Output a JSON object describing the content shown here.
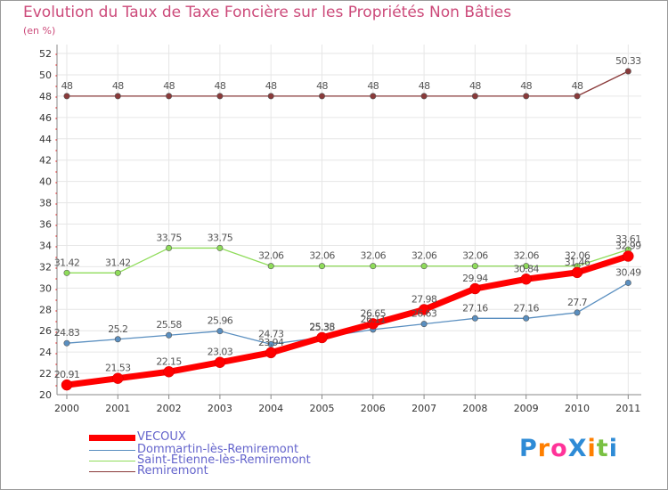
{
  "chart_data": {
    "type": "line",
    "title": "Evolution du Taux de Taxe Foncière sur les Propriétés Non Bâties",
    "ylabel": "(en %)",
    "xlabel": "",
    "ylim": [
      20,
      52
    ],
    "yticks": [
      20,
      22,
      24,
      26,
      28,
      30,
      32,
      34,
      36,
      38,
      40,
      42,
      44,
      46,
      48,
      50,
      52
    ],
    "categories": [
      "2000",
      "2001",
      "2002",
      "2003",
      "2004",
      "2005",
      "2006",
      "2007",
      "2008",
      "2009",
      "2010",
      "2011"
    ],
    "series": [
      {
        "name": "VECOUX",
        "color": "#ff0000",
        "values": [
          20.91,
          21.53,
          22.15,
          23.03,
          23.94,
          25.35,
          26.65,
          27.98,
          29.94,
          30.84,
          31.46,
          32.99
        ],
        "labels": [
          "20.91",
          "21.53",
          "22.15",
          "23.03",
          "23.94",
          "25.35",
          "26.65",
          "27.98",
          "29.94",
          "30.84",
          "31.46",
          "32.99"
        ]
      },
      {
        "name": "Dommartin-lès-Remiremont",
        "color": "#5a8fc0",
        "values": [
          24.83,
          25.2,
          25.58,
          25.96,
          24.73,
          25.38,
          26.11,
          26.63,
          27.16,
          27.16,
          27.7,
          30.49
        ],
        "labels": [
          "24.83",
          "25.2",
          "25.58",
          "25.96",
          "24.73",
          "25.38",
          "26.11",
          "26.63",
          "27.16",
          "27.16",
          "27.7",
          "30.49"
        ]
      },
      {
        "name": "Saint-Étienne-lès-Remiremont",
        "color": "#8fdc5a",
        "values": [
          31.42,
          31.42,
          33.75,
          33.75,
          32.06,
          32.06,
          32.06,
          32.06,
          32.06,
          32.06,
          32.06,
          33.61
        ],
        "labels": [
          "31.42",
          "31.42",
          "33.75",
          "33.75",
          "32.06",
          "32.06",
          "32.06",
          "32.06",
          "32.06",
          "32.06",
          "32.06",
          "33.61"
        ]
      },
      {
        "name": "Remiremont",
        "color": "#8a3a3a",
        "values": [
          48,
          48,
          48,
          48,
          48,
          48,
          48,
          48,
          48,
          48,
          48,
          50.33
        ],
        "labels": [
          "48",
          "48",
          "48",
          "48",
          "48",
          "48",
          "48",
          "48",
          "48",
          "48",
          "48",
          "50.33"
        ]
      }
    ]
  },
  "logo": {
    "text": "ProXiti",
    "colors": [
      "#2e8bd6",
      "#ff7f00",
      "#ff3399",
      "#2e8bd6",
      "#ff7f00",
      "#7ac143",
      "#2e8bd6"
    ]
  }
}
